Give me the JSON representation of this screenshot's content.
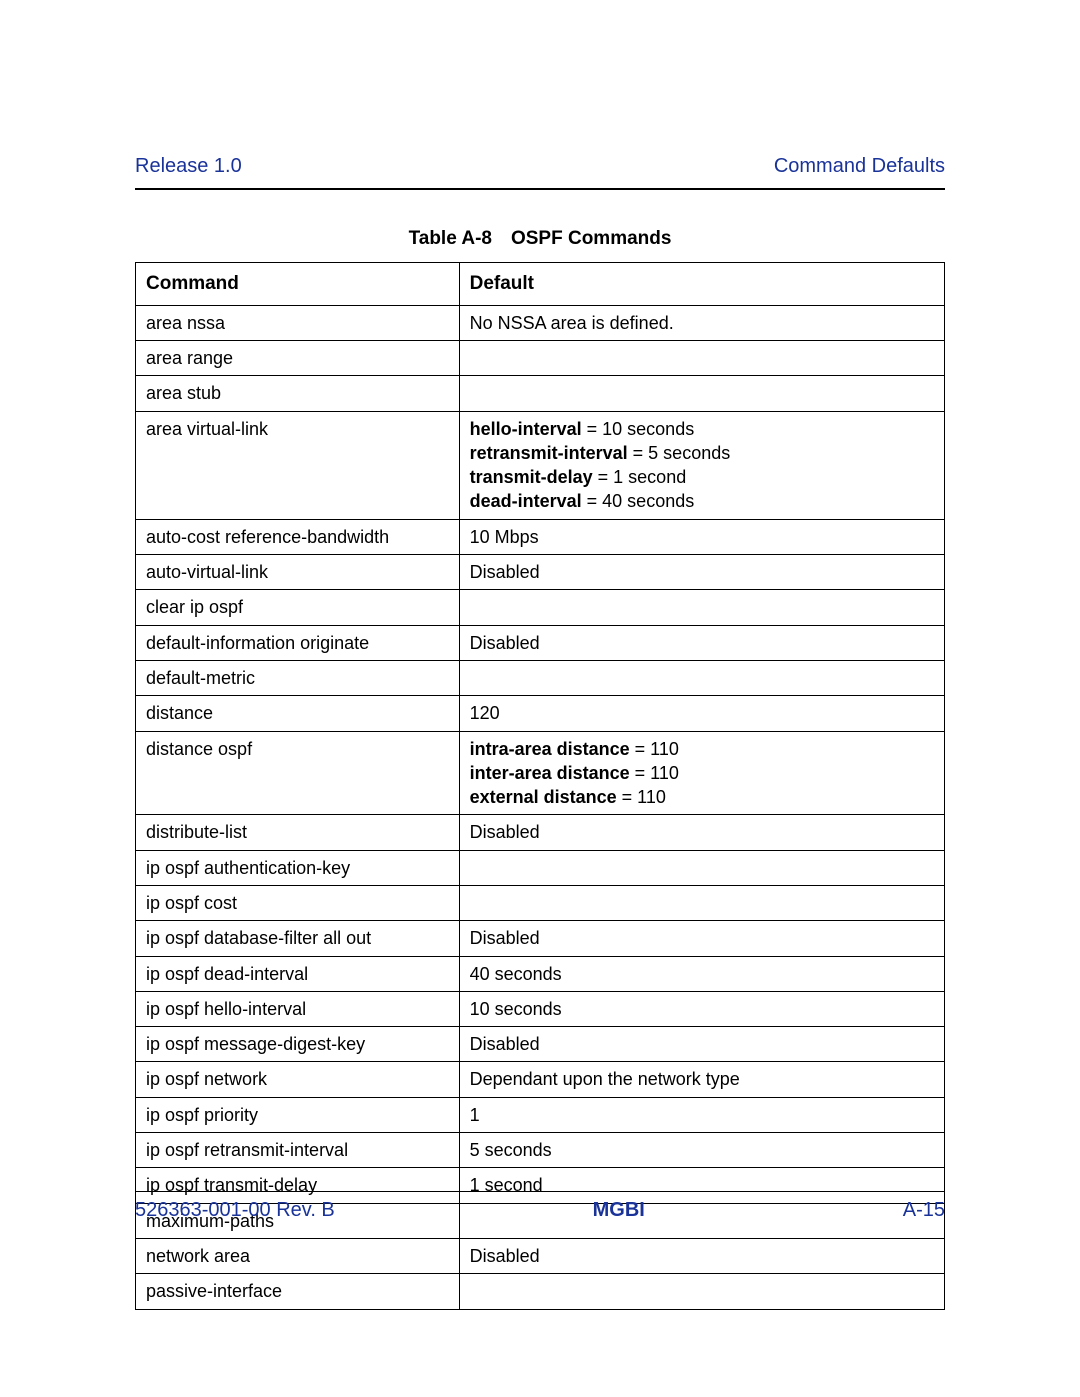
{
  "colors": {
    "header_text": "#1a3399",
    "body_text": "#000000",
    "rule": "#000000",
    "table_border": "#000000",
    "background": "#ffffff"
  },
  "typography": {
    "font_family": "Arial, Helvetica, sans-serif",
    "header_fontsize_pt": 15,
    "title_fontsize_pt": 14,
    "cell_fontsize_pt": 13
  },
  "header": {
    "left": "Release 1.0",
    "right": "Command Defaults"
  },
  "table": {
    "type": "table",
    "title": "Table A-8 OSPF Commands",
    "column_widths_pct": [
      40,
      60
    ],
    "columns": [
      "Command",
      "Default"
    ],
    "rows": [
      {
        "command": "area nssa",
        "default_segments": [
          {
            "text": "No NSSA area is defined."
          }
        ]
      },
      {
        "command": "area range",
        "default_segments": []
      },
      {
        "command": "area stub",
        "default_segments": []
      },
      {
        "command": "area virtual-link",
        "default_segments": [
          {
            "text": "hello-interval",
            "bold": true
          },
          {
            "text": " = 10 seconds"
          },
          {
            "br": true
          },
          {
            "text": "retransmit-interval",
            "bold": true
          },
          {
            "text": " = 5 seconds"
          },
          {
            "br": true
          },
          {
            "text": "transmit-delay",
            "bold": true
          },
          {
            "text": " = 1 second"
          },
          {
            "br": true
          },
          {
            "text": "dead-interval",
            "bold": true
          },
          {
            "text": " = 40 seconds"
          }
        ]
      },
      {
        "command": "auto-cost reference-bandwidth",
        "default_segments": [
          {
            "text": "10 Mbps"
          }
        ]
      },
      {
        "command": "auto-virtual-link",
        "default_segments": [
          {
            "text": "Disabled"
          }
        ]
      },
      {
        "command": "clear ip ospf",
        "default_segments": []
      },
      {
        "command": "default-information originate",
        "default_segments": [
          {
            "text": "Disabled"
          }
        ]
      },
      {
        "command": "default-metric",
        "default_segments": []
      },
      {
        "command": "distance",
        "default_segments": [
          {
            "text": "120"
          }
        ]
      },
      {
        "command": "distance ospf",
        "default_segments": [
          {
            "text": "intra-area distance",
            "bold": true
          },
          {
            "text": " = 110"
          },
          {
            "br": true
          },
          {
            "text": "inter-area distance",
            "bold": true
          },
          {
            "text": " = 110"
          },
          {
            "br": true
          },
          {
            "text": "external distance",
            "bold": true
          },
          {
            "text": " = 110"
          }
        ]
      },
      {
        "command": "distribute-list",
        "default_segments": [
          {
            "text": "Disabled"
          }
        ]
      },
      {
        "command": "ip ospf authentication-key",
        "default_segments": []
      },
      {
        "command": "ip ospf cost",
        "default_segments": []
      },
      {
        "command": "ip ospf database-filter all out",
        "default_segments": [
          {
            "text": "Disabled"
          }
        ]
      },
      {
        "command": "ip ospf dead-interval",
        "default_segments": [
          {
            "text": "40 seconds"
          }
        ]
      },
      {
        "command": "ip ospf hello-interval",
        "default_segments": [
          {
            "text": "10 seconds"
          }
        ]
      },
      {
        "command": "ip ospf message-digest-key",
        "default_segments": [
          {
            "text": "Disabled"
          }
        ]
      },
      {
        "command": "ip ospf network",
        "default_segments": [
          {
            "text": "Dependant upon the network type"
          }
        ]
      },
      {
        "command": "ip ospf priority",
        "default_segments": [
          {
            "text": "1"
          }
        ]
      },
      {
        "command": "ip ospf retransmit-interval",
        "default_segments": [
          {
            "text": "5 seconds"
          }
        ]
      },
      {
        "command": "ip ospf transmit-delay",
        "default_segments": [
          {
            "text": "1 second"
          }
        ]
      },
      {
        "command": "maximum-paths",
        "default_segments": []
      },
      {
        "command": "network area",
        "default_segments": [
          {
            "text": "Disabled"
          }
        ]
      },
      {
        "command": "passive-interface",
        "default_segments": []
      }
    ]
  },
  "footer": {
    "left": "526363-001-00 Rev. B",
    "center": "MGBI",
    "right": "A-15"
  }
}
